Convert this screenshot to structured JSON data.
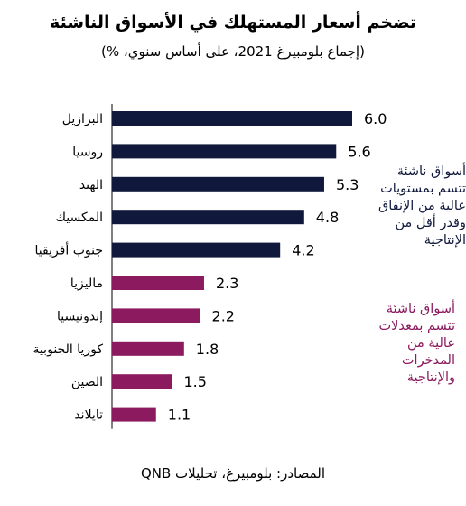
{
  "chart_data": {
    "type": "bar",
    "orientation": "horizontal",
    "title": "تضخم أسعار المستهلك في الأسواق الناشئة",
    "subtitle": "(إجماع بلومبيرغ 2021، على أساس سنوي، %)",
    "categories": [
      "البرازيل",
      "روسيا",
      "الهند",
      "المكسيك",
      "جنوب أفريقيا",
      "ماليزيا",
      "إندونيسيا",
      "كوريا الجنوبية",
      "الصين",
      "تايلاند"
    ],
    "values": [
      6.0,
      5.6,
      5.3,
      4.8,
      4.2,
      2.3,
      2.2,
      1.8,
      1.5,
      1.1
    ],
    "value_labels": [
      "6.0",
      "5.6",
      "5.3",
      "4.8",
      "4.2",
      "2.3",
      "2.2",
      "1.8",
      "1.5",
      "1.1"
    ],
    "groups": [
      0,
      0,
      0,
      0,
      0,
      1,
      1,
      1,
      1,
      1
    ],
    "group_colors": [
      "#10193c",
      "#8b1a5e"
    ],
    "xlim": [
      0,
      6.0
    ],
    "grid": false,
    "legend": "none"
  },
  "annotations": [
    "أسواق ناشئة\nتتسم بمستويات\nعالية من الإنفاق\nوقدر أقل من\nالإنتاجية",
    "أسواق ناشئة\nتتسم بمعدلات\nعالية من\nالمدخرات\nوالإنتاجية"
  ],
  "source": "المصادر: بلومبيرغ، تحليلات QNB"
}
